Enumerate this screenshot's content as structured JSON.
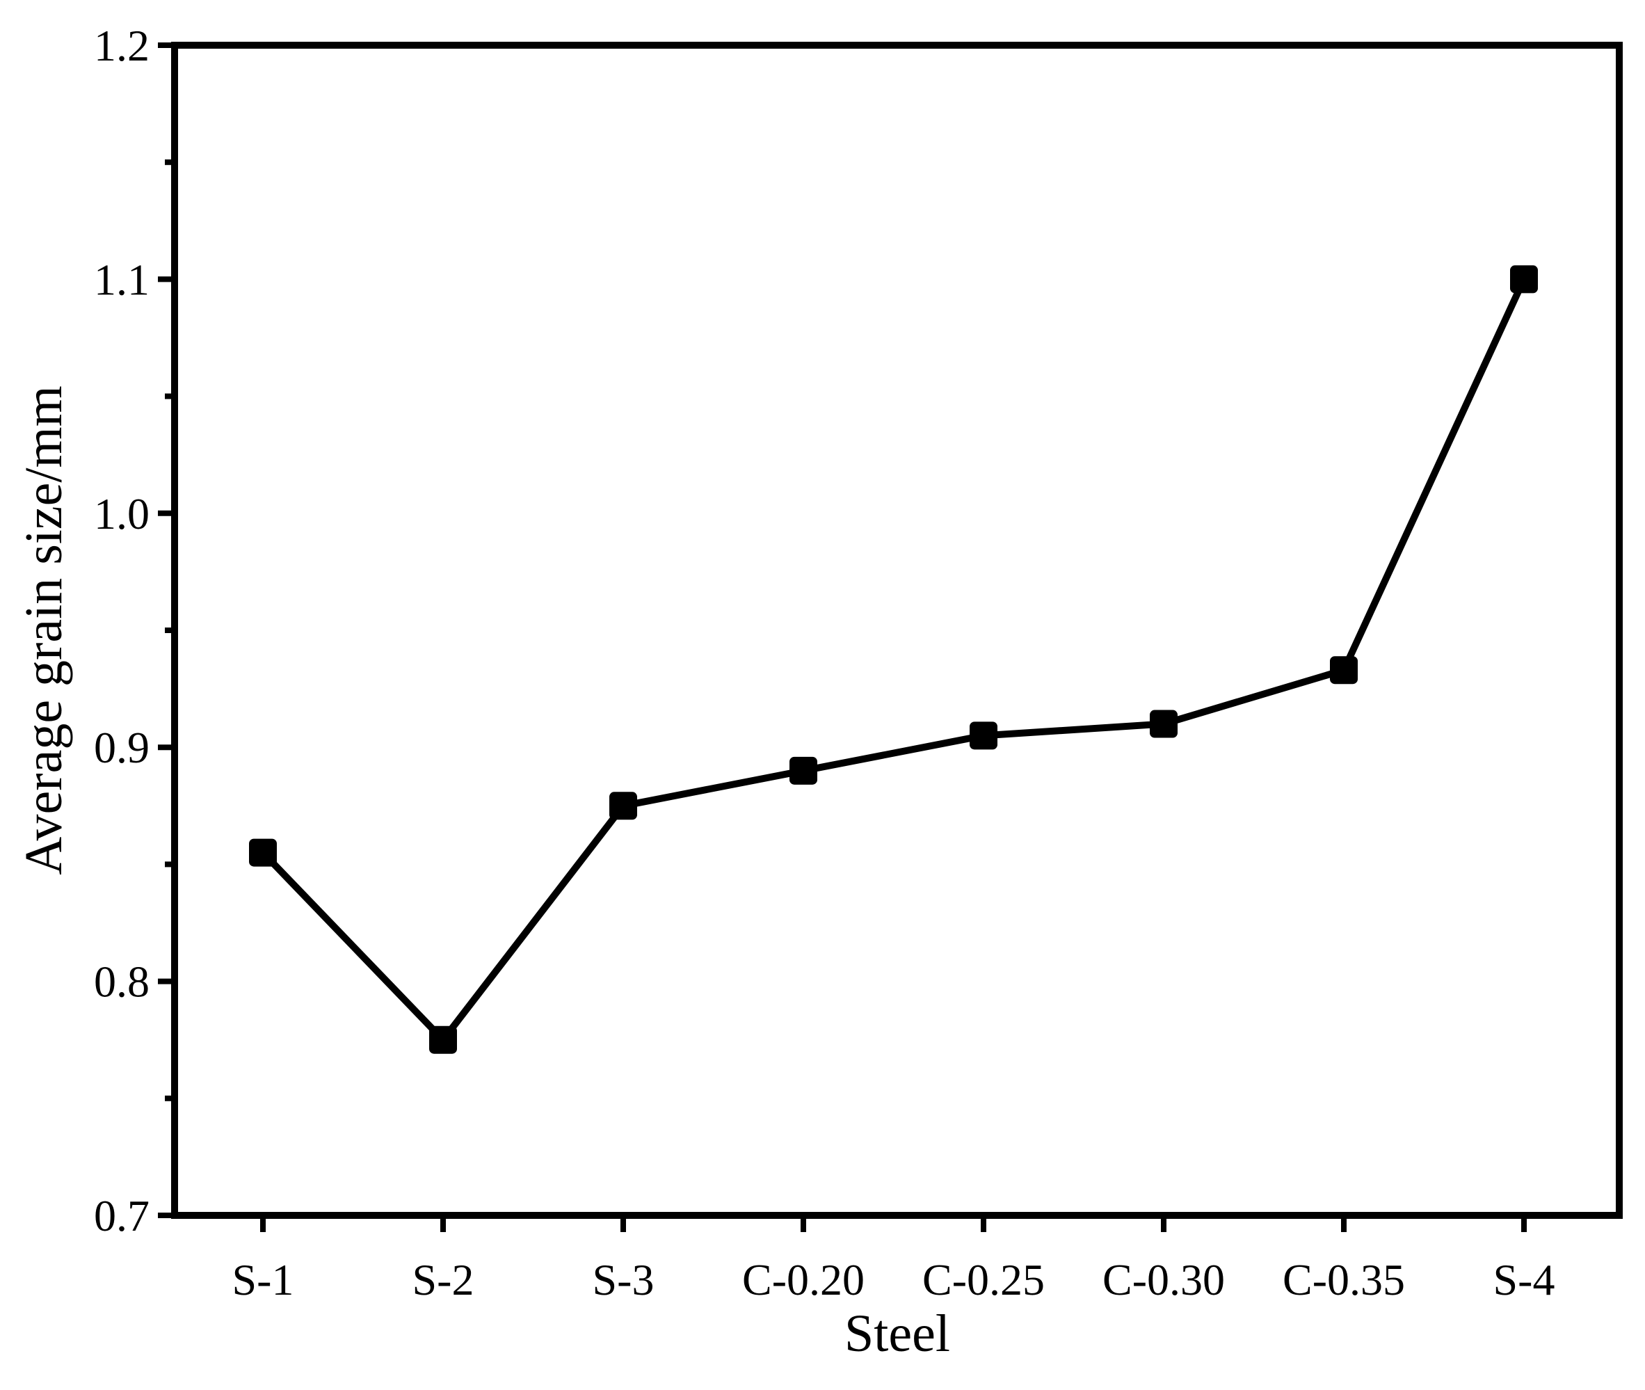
{
  "chart_data": {
    "type": "line",
    "title": "",
    "xlabel": "Steel",
    "ylabel": "Average grain size/mm",
    "categories": [
      "S-1",
      "S-2",
      "S-3",
      "C-0.20",
      "C-0.25",
      "C-0.30",
      "C-0.35",
      "S-4"
    ],
    "series": [
      {
        "values": [
          0.855,
          0.775,
          0.875,
          0.89,
          0.905,
          0.91,
          0.933,
          1.1
        ],
        "color": "#000000",
        "marker": "square"
      }
    ],
    "ylim": [
      0.7,
      1.2
    ],
    "yticks": [
      "0.7",
      "0.8",
      "0.9",
      "1.0",
      "1.1",
      "1.2"
    ],
    "grid": false,
    "legend": "none"
  }
}
